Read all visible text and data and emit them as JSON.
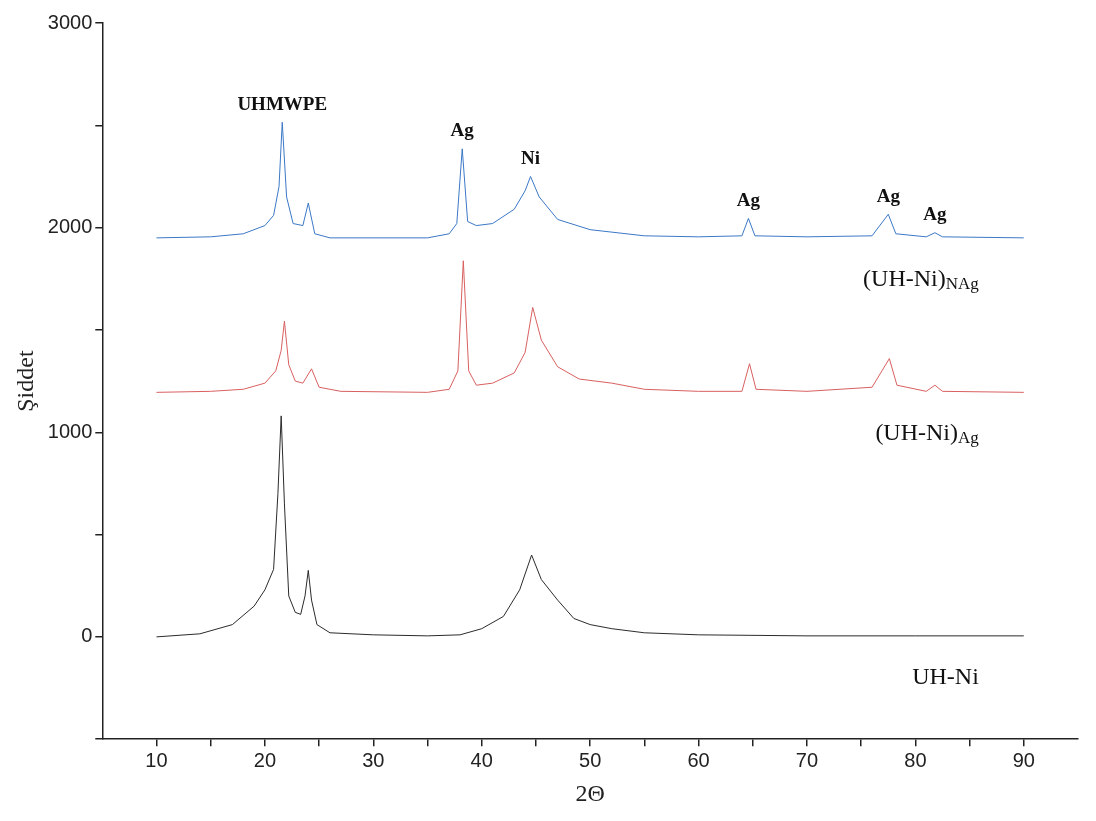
{
  "chart_data": {
    "type": "line",
    "xlabel": "2Θ",
    "ylabel": "Şiddet",
    "xlim": [
      5,
      95
    ],
    "ylim": [
      -500,
      3000
    ],
    "xticks": [
      10,
      {
        "value": 15,
        "label": null
      },
      20,
      {
        "value": 25,
        "label": null
      },
      30,
      {
        "value": 35,
        "label": null
      },
      40,
      {
        "value": 45,
        "label": null
      },
      50,
      {
        "value": 55,
        "label": null
      },
      60,
      {
        "value": 65,
        "label": null
      },
      70,
      {
        "value": 75,
        "label": null
      },
      80,
      {
        "value": 85,
        "label": null
      },
      90
    ],
    "yticks": [
      {
        "value": -500,
        "label": null
      },
      0,
      {
        "value": 500,
        "label": null
      },
      1000,
      {
        "value": 1500,
        "label": null
      },
      2000,
      {
        "value": 2500,
        "label": null
      },
      3000
    ],
    "grid": false,
    "legend": false,
    "marker": "none",
    "line_style": "solid",
    "series": [
      {
        "name": "UH-Ni",
        "color": "#2b2b2b",
        "x": [
          10,
          14,
          17,
          19,
          20,
          20.8,
          21.2,
          21.5,
          21.8,
          22.2,
          22.8,
          23.3,
          23.7,
          24.0,
          24.3,
          24.8,
          26,
          30,
          35,
          38,
          40,
          42,
          43.5,
          44.6,
          45.5,
          47,
          48.5,
          50,
          52,
          55,
          60,
          70,
          80,
          90
        ],
        "values": [
          0,
          15,
          60,
          150,
          230,
          330,
          700,
          1080,
          650,
          200,
          120,
          110,
          200,
          325,
          180,
          60,
          20,
          10,
          5,
          10,
          40,
          100,
          230,
          400,
          280,
          180,
          90,
          60,
          40,
          20,
          10,
          5,
          5,
          5
        ]
      },
      {
        "name": "(UH-Ni)$_{Ag}$",
        "color": "#d96060",
        "x": [
          10,
          15,
          18,
          20,
          21,
          21.5,
          21.8,
          22.2,
          22.8,
          23.5,
          24.3,
          25,
          27,
          35,
          37,
          37.8,
          38.3,
          38.8,
          39.5,
          41,
          43,
          44,
          44.7,
          45.5,
          47,
          49,
          52,
          55,
          60,
          64,
          64.7,
          65.3,
          70,
          76,
          77.6,
          78.3,
          81,
          81.8,
          82.5,
          90
        ],
        "values": [
          1195,
          1200,
          1210,
          1240,
          1300,
          1400,
          1543,
          1330,
          1250,
          1240,
          1310,
          1220,
          1200,
          1195,
          1210,
          1300,
          1838,
          1300,
          1230,
          1240,
          1290,
          1390,
          1610,
          1450,
          1320,
          1260,
          1240,
          1210,
          1200,
          1200,
          1335,
          1210,
          1200,
          1220,
          1360,
          1230,
          1200,
          1230,
          1200,
          1195
        ]
      },
      {
        "name": "(UH-Ni)$_{NAg}$",
        "color": "#3b78c6",
        "x": [
          10,
          15,
          18,
          20,
          20.8,
          21.3,
          21.6,
          22,
          22.6,
          23.5,
          24.0,
          24.6,
          26,
          35,
          37,
          37.7,
          38.2,
          38.7,
          39.5,
          41,
          43,
          44,
          44.5,
          45.3,
          47,
          50,
          55,
          60,
          64,
          64.6,
          65.2,
          70,
          76,
          77.5,
          78.2,
          81,
          81.8,
          82.5,
          90
        ],
        "values": [
          1950,
          1955,
          1970,
          2010,
          2060,
          2200,
          2515,
          2150,
          2020,
          2010,
          2120,
          1970,
          1950,
          1950,
          1970,
          2020,
          2385,
          2030,
          2010,
          2020,
          2090,
          2180,
          2250,
          2150,
          2040,
          1990,
          1960,
          1955,
          1960,
          2045,
          1960,
          1955,
          1960,
          2065,
          1970,
          1955,
          1975,
          1955,
          1950
        ]
      }
    ],
    "annotations": [
      {
        "text": "UHMWPE",
        "x": 21.6,
        "y": 2515
      },
      {
        "text": "Ag",
        "x": 38.2,
        "y": 2385
      },
      {
        "text": "Ni",
        "x": 44.5,
        "y": 2250
      },
      {
        "text": "Ag",
        "x": 64.6,
        "y": 2045
      },
      {
        "text": "Ag",
        "x": 77.5,
        "y": 2065
      },
      {
        "text": "Ag",
        "x": 81.8,
        "y": 1975
      }
    ]
  }
}
